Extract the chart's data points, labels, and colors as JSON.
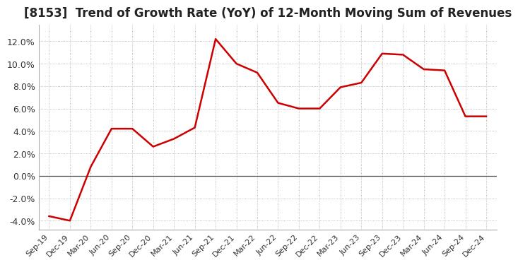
{
  "title": "[8153]  Trend of Growth Rate (YoY) of 12-Month Moving Sum of Revenues",
  "title_fontsize": 12,
  "line_color": "#cc0000",
  "background_color": "#ffffff",
  "grid_color": "#aaaaaa",
  "ylim": [
    -0.048,
    0.135
  ],
  "yticks": [
    -0.04,
    -0.02,
    0.0,
    0.02,
    0.04,
    0.06,
    0.08,
    0.1,
    0.12
  ],
  "dates": [
    "Sep-19",
    "Dec-19",
    "Mar-20",
    "Jun-20",
    "Sep-20",
    "Dec-20",
    "Mar-21",
    "Jun-21",
    "Sep-21",
    "Dec-21",
    "Mar-22",
    "Jun-22",
    "Sep-22",
    "Dec-22",
    "Mar-23",
    "Jun-23",
    "Sep-23",
    "Dec-23",
    "Mar-24",
    "Jun-24",
    "Sep-24",
    "Dec-24"
  ],
  "values": [
    -0.036,
    -0.04,
    0.008,
    0.042,
    0.042,
    0.026,
    0.033,
    0.043,
    0.122,
    0.1,
    0.092,
    0.065,
    0.06,
    0.06,
    0.079,
    0.083,
    0.109,
    0.108,
    0.095,
    0.094,
    0.053,
    0.053
  ]
}
